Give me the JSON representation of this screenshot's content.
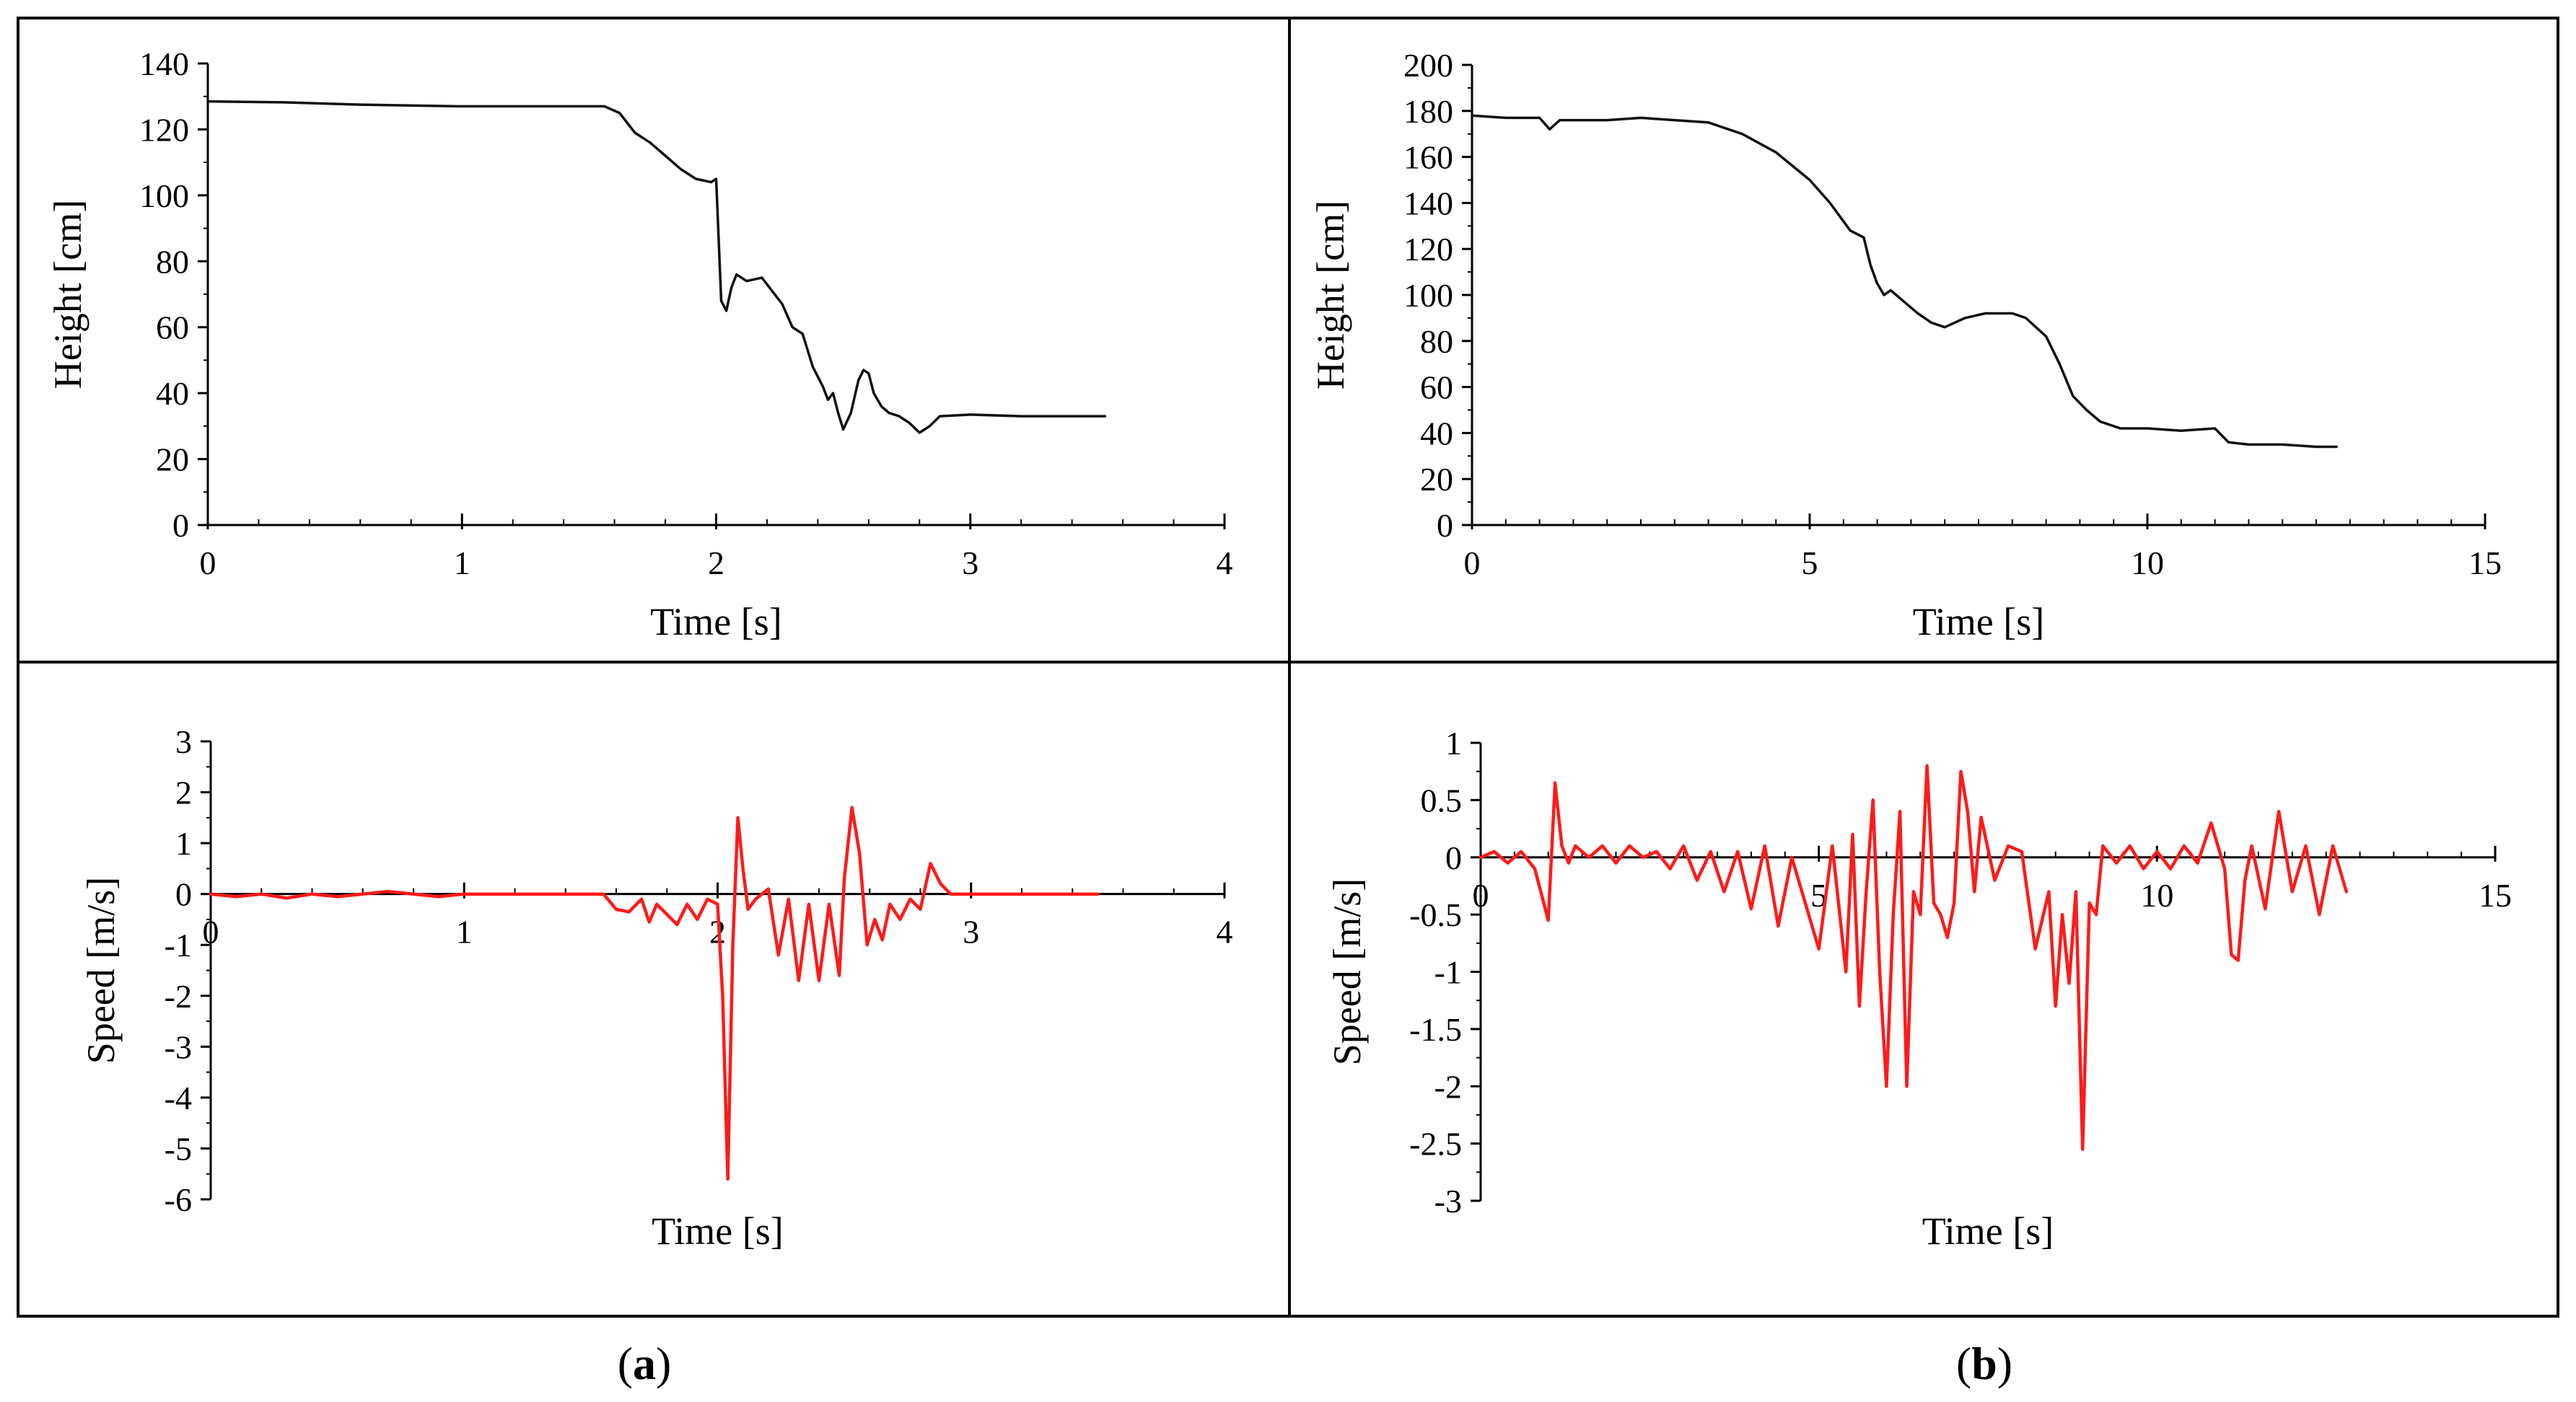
{
  "figure": {
    "panel_labels": [
      {
        "open": "(",
        "letter": "a",
        "close": ")"
      },
      {
        "open": "(",
        "letter": "b",
        "close": ")"
      }
    ]
  },
  "colors": {
    "height_line": "#111111",
    "speed_line": "#ff1a1a",
    "frame": "#000000"
  },
  "chart_data": [
    {
      "id": "a-height",
      "type": "line",
      "xlabel": "Time [s]",
      "ylabel": "Height [cm]",
      "xlim": [
        0,
        4
      ],
      "ylim": [
        0,
        140
      ],
      "xticks": [
        0,
        1,
        2,
        3,
        4
      ],
      "yticks": [
        0,
        20,
        40,
        60,
        80,
        100,
        120,
        140
      ],
      "x_minor_step": 0.2,
      "y_minor_step": 10,
      "color": "#111111",
      "series": [
        {
          "name": "Height",
          "x": [
            0,
            0.3,
            0.6,
            1.0,
            1.4,
            1.56,
            1.62,
            1.68,
            1.74,
            1.8,
            1.86,
            1.92,
            1.98,
            2.0,
            2.02,
            2.04,
            2.06,
            2.08,
            2.12,
            2.18,
            2.22,
            2.26,
            2.3,
            2.34,
            2.38,
            2.42,
            2.44,
            2.46,
            2.48,
            2.5,
            2.53,
            2.56,
            2.58,
            2.6,
            2.62,
            2.65,
            2.68,
            2.72,
            2.76,
            2.8,
            2.84,
            2.88,
            3.0,
            3.2,
            3.4,
            3.53
          ],
          "y": [
            128.5,
            128.2,
            127.5,
            127,
            127,
            127,
            125,
            119,
            116,
            112,
            108,
            105,
            104,
            105,
            68,
            65,
            72,
            76,
            74,
            75,
            71,
            67,
            60,
            58,
            48,
            42,
            38,
            40,
            34,
            29,
            34,
            44,
            47,
            46,
            40,
            36,
            34,
            33,
            31,
            28,
            30,
            33,
            33.5,
            33,
            33,
            33
          ]
        }
      ]
    },
    {
      "id": "b-height",
      "type": "line",
      "xlabel": "Time [s]",
      "ylabel": "Height [cm]",
      "xlim": [
        0,
        15
      ],
      "ylim": [
        0,
        200
      ],
      "xticks": [
        0,
        5,
        10,
        15
      ],
      "yticks": [
        0,
        20,
        40,
        60,
        80,
        100,
        120,
        140,
        160,
        180,
        200
      ],
      "x_minor_step": 0.5,
      "y_minor_step": 10,
      "color": "#111111",
      "series": [
        {
          "name": "Height",
          "x": [
            0,
            0.5,
            1.0,
            1.15,
            1.3,
            2.0,
            2.5,
            3.0,
            3.5,
            4.0,
            4.5,
            5.0,
            5.3,
            5.6,
            5.8,
            5.9,
            6.0,
            6.1,
            6.2,
            6.4,
            6.6,
            6.8,
            7.0,
            7.3,
            7.6,
            8.0,
            8.2,
            8.5,
            8.7,
            8.9,
            9.1,
            9.3,
            9.6,
            10.0,
            10.5,
            11.0,
            11.2,
            11.5,
            12.0,
            12.5,
            12.8
          ],
          "y": [
            178,
            177,
            177,
            172,
            176,
            176,
            177,
            176,
            175,
            170,
            162,
            150,
            140,
            128,
            125,
            113,
            105,
            100,
            102,
            97,
            92,
            88,
            86,
            90,
            92,
            92,
            90,
            82,
            70,
            56,
            50,
            45,
            42,
            42,
            41,
            42,
            36,
            35,
            35,
            34,
            34
          ]
        }
      ]
    },
    {
      "id": "a-speed",
      "type": "line",
      "xlabel": "Time [s]",
      "ylabel": "Speed [m/s]",
      "xlim": [
        0,
        4
      ],
      "ylim": [
        -6,
        3
      ],
      "xticks": [
        0,
        1,
        2,
        3,
        4
      ],
      "yticks": [
        -6,
        -5,
        -4,
        -3,
        -2,
        -1,
        0,
        1,
        2,
        3
      ],
      "x_minor_step": 0.2,
      "y_minor_step": 0.5,
      "color": "#ff1a1a",
      "series": [
        {
          "name": "Speed",
          "x": [
            0,
            0.1,
            0.2,
            0.3,
            0.4,
            0.5,
            0.6,
            0.7,
            0.8,
            0.9,
            1.0,
            1.2,
            1.4,
            1.55,
            1.6,
            1.65,
            1.7,
            1.73,
            1.76,
            1.8,
            1.84,
            1.88,
            1.92,
            1.96,
            2.0,
            2.02,
            2.04,
            2.06,
            2.08,
            2.1,
            2.12,
            2.15,
            2.2,
            2.24,
            2.28,
            2.32,
            2.36,
            2.4,
            2.44,
            2.48,
            2.5,
            2.53,
            2.56,
            2.59,
            2.62,
            2.65,
            2.68,
            2.72,
            2.76,
            2.8,
            2.84,
            2.88,
            2.92,
            3.0,
            3.2,
            3.5
          ],
          "y": [
            0,
            -0.05,
            0,
            -0.08,
            0,
            -0.05,
            0,
            0.05,
            0,
            -0.05,
            0,
            0,
            0,
            0,
            -0.3,
            -0.35,
            -0.1,
            -0.55,
            -0.2,
            -0.4,
            -0.6,
            -0.2,
            -0.5,
            -0.1,
            -0.2,
            -2,
            -5.6,
            -1,
            1.5,
            0.5,
            -0.3,
            -0.1,
            0.1,
            -1.2,
            -0.1,
            -1.7,
            -0.2,
            -1.7,
            -0.2,
            -1.6,
            0.3,
            1.7,
            0.8,
            -1.0,
            -0.5,
            -0.9,
            -0.2,
            -0.5,
            -0.1,
            -0.3,
            0.6,
            0.2,
            0,
            0,
            0,
            0
          ]
        }
      ]
    },
    {
      "id": "b-speed",
      "type": "line",
      "xlabel": "Time [s]",
      "ylabel": "Speed [m/s]",
      "xlim": [
        0,
        15
      ],
      "ylim": [
        -3,
        1
      ],
      "xticks": [
        0,
        5,
        10,
        15
      ],
      "yticks": [
        -3,
        -2.5,
        -2,
        -1.5,
        -1,
        -0.5,
        0,
        0.5,
        1
      ],
      "y_tick_labels": [
        "-3",
        "-2.5",
        "-2",
        "-1.5",
        "-1",
        "-0.5",
        "0",
        "0.5",
        "1"
      ],
      "x_minor_step": 0.5,
      "y_minor_step": 0.25,
      "color": "#ff1a1a",
      "series": [
        {
          "name": "Speed",
          "x": [
            0,
            0.2,
            0.4,
            0.6,
            0.8,
            1.0,
            1.1,
            1.2,
            1.3,
            1.4,
            1.6,
            1.8,
            2.0,
            2.2,
            2.4,
            2.6,
            2.8,
            3.0,
            3.2,
            3.4,
            3.6,
            3.8,
            4.0,
            4.2,
            4.4,
            4.6,
            4.8,
            5.0,
            5.2,
            5.4,
            5.5,
            5.6,
            5.7,
            5.8,
            5.9,
            6.0,
            6.1,
            6.2,
            6.3,
            6.4,
            6.5,
            6.6,
            6.7,
            6.8,
            6.9,
            7.0,
            7.1,
            7.2,
            7.3,
            7.4,
            7.6,
            7.8,
            8.0,
            8.2,
            8.4,
            8.5,
            8.6,
            8.7,
            8.8,
            8.9,
            9.0,
            9.1,
            9.2,
            9.4,
            9.6,
            9.8,
            10.0,
            10.2,
            10.4,
            10.6,
            10.8,
            11.0,
            11.1,
            11.2,
            11.3,
            11.4,
            11.6,
            11.8,
            12.0,
            12.2,
            12.4,
            12.6,
            12.8
          ],
          "y": [
            0,
            0.05,
            -0.05,
            0.05,
            -0.1,
            -0.55,
            0.65,
            0.1,
            -0.05,
            0.1,
            0,
            0.1,
            -0.05,
            0.1,
            0,
            0.05,
            -0.1,
            0.1,
            -0.2,
            0.05,
            -0.3,
            0.05,
            -0.45,
            0.1,
            -0.6,
            0,
            -0.4,
            -0.8,
            0.1,
            -1.0,
            0.2,
            -1.3,
            -0.3,
            0.5,
            -1.0,
            -2.0,
            -0.5,
            0.4,
            -2.0,
            -0.3,
            -0.5,
            0.8,
            -0.4,
            -0.5,
            -0.7,
            -0.4,
            0.75,
            0.4,
            -0.3,
            0.35,
            -0.2,
            0.1,
            0.05,
            -0.8,
            -0.3,
            -1.3,
            -0.5,
            -1.1,
            -0.3,
            -2.55,
            -0.4,
            -0.5,
            0.1,
            -0.05,
            0.1,
            -0.1,
            0.05,
            -0.1,
            0.1,
            -0.05,
            0.3,
            -0.1,
            -0.85,
            -0.9,
            -0.2,
            0.1,
            -0.45,
            0.4,
            -0.3,
            0.1,
            -0.5,
            0.1,
            -0.3
          ]
        }
      ]
    }
  ]
}
